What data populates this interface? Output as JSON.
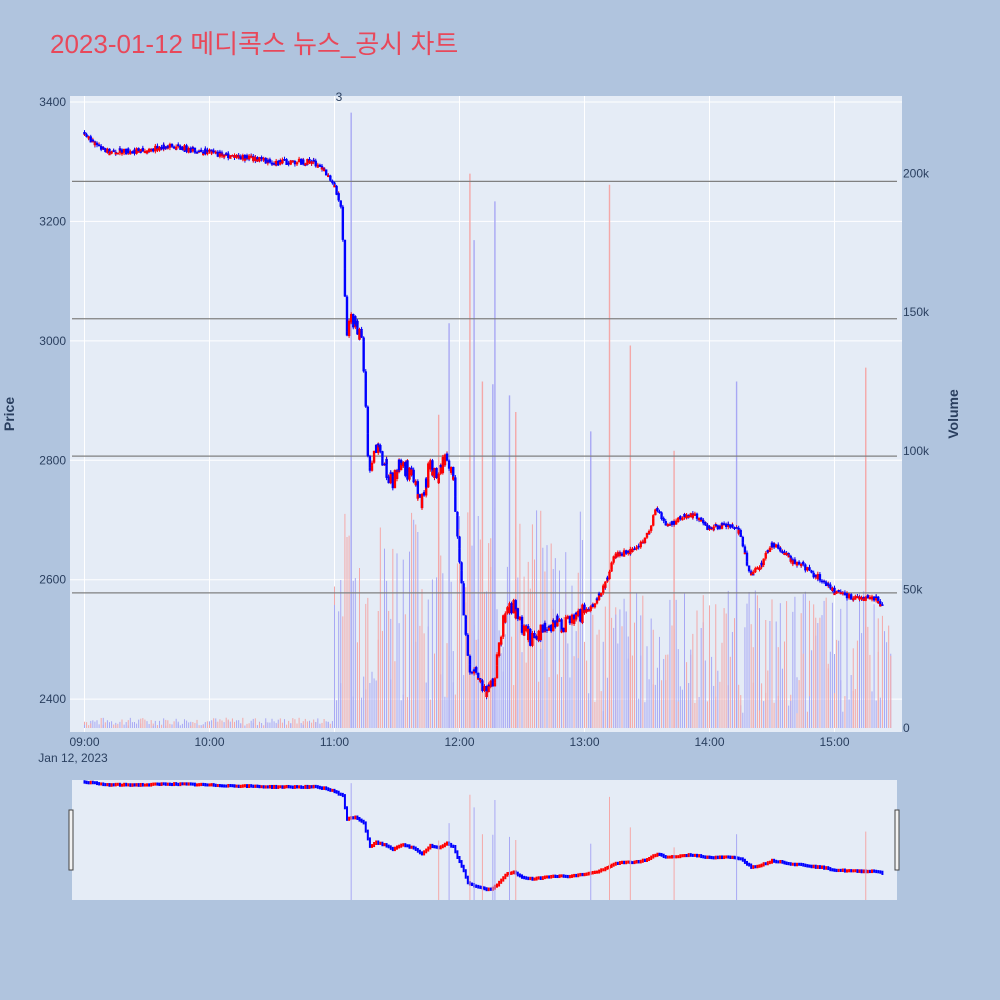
{
  "chart_data": {
    "type": "candlestick",
    "title": "2023-01-12 메디콕스 뉴스_공시 차트",
    "date_label": "Jan 12, 2023",
    "ylabel": "Price",
    "y2label": "Volume",
    "ylim": [
      2345,
      3410
    ],
    "y2lim": [
      0,
      228000
    ],
    "yticks": [
      "2400",
      "2600",
      "2800",
      "3000",
      "3200",
      "3400"
    ],
    "y2ticks": [
      "0",
      "50k",
      "100k",
      "150k",
      "200k"
    ],
    "xticks": [
      "09:00",
      "10:00",
      "11:00",
      "12:00",
      "13:00",
      "14:00",
      "15:00"
    ],
    "annotation": "3",
    "annotation_time": "11:08",
    "hlines": [
      2578,
      2807,
      3037,
      3267
    ],
    "up_color": "#ff0000",
    "down_color": "#0000ff",
    "price_path": [
      [
        "09:00",
        3345
      ],
      [
        "09:10",
        3318
      ],
      [
        "09:20",
        3318
      ],
      [
        "09:30",
        3318
      ],
      [
        "09:40",
        3326
      ],
      [
        "09:50",
        3322
      ],
      [
        "10:00",
        3316
      ],
      [
        "10:10",
        3310
      ],
      [
        "10:20",
        3306
      ],
      [
        "10:30",
        3300
      ],
      [
        "10:40",
        3300
      ],
      [
        "10:50",
        3300
      ],
      [
        "10:55",
        3290
      ],
      [
        "11:00",
        3260
      ],
      [
        "11:04",
        3225
      ],
      [
        "11:06",
        3020
      ],
      [
        "11:10",
        3040
      ],
      [
        "11:14",
        2990
      ],
      [
        "11:17",
        2780
      ],
      [
        "11:20",
        2820
      ],
      [
        "11:25",
        2790
      ],
      [
        "11:28",
        2760
      ],
      [
        "11:32",
        2800
      ],
      [
        "11:38",
        2770
      ],
      [
        "11:42",
        2720
      ],
      [
        "11:46",
        2790
      ],
      [
        "11:50",
        2770
      ],
      [
        "11:54",
        2810
      ],
      [
        "11:57",
        2780
      ],
      [
        "12:00",
        2650
      ],
      [
        "12:02",
        2570
      ],
      [
        "12:04",
        2470
      ],
      [
        "12:07",
        2445
      ],
      [
        "12:10",
        2430
      ],
      [
        "12:13",
        2410
      ],
      [
        "12:16",
        2420
      ],
      [
        "12:19",
        2470
      ],
      [
        "12:22",
        2540
      ],
      [
        "12:26",
        2560
      ],
      [
        "12:30",
        2520
      ],
      [
        "12:35",
        2500
      ],
      [
        "12:40",
        2515
      ],
      [
        "12:45",
        2530
      ],
      [
        "12:50",
        2525
      ],
      [
        "12:55",
        2530
      ],
      [
        "13:00",
        2545
      ],
      [
        "13:05",
        2560
      ],
      [
        "13:10",
        2590
      ],
      [
        "13:15",
        2640
      ],
      [
        "13:20",
        2645
      ],
      [
        "13:25",
        2650
      ],
      [
        "13:30",
        2670
      ],
      [
        "13:35",
        2720
      ],
      [
        "13:40",
        2690
      ],
      [
        "13:45",
        2700
      ],
      [
        "13:50",
        2710
      ],
      [
        "13:55",
        2705
      ],
      [
        "14:00",
        2685
      ],
      [
        "14:05",
        2690
      ],
      [
        "14:10",
        2690
      ],
      [
        "14:15",
        2680
      ],
      [
        "14:20",
        2605
      ],
      [
        "14:25",
        2625
      ],
      [
        "14:30",
        2660
      ],
      [
        "14:35",
        2650
      ],
      [
        "14:40",
        2630
      ],
      [
        "14:45",
        2625
      ],
      [
        "14:50",
        2610
      ],
      [
        "14:55",
        2600
      ],
      [
        "15:00",
        2580
      ],
      [
        "15:05",
        2575
      ],
      [
        "15:10",
        2570
      ],
      [
        "15:15",
        2570
      ],
      [
        "15:20",
        2570
      ],
      [
        "15:23",
        2555
      ]
    ],
    "volume_spikes": [
      [
        "11:08",
        222000
      ],
      [
        "12:05",
        200000
      ],
      [
        "12:17",
        190000
      ],
      [
        "13:12",
        196000
      ],
      [
        "12:07",
        176000
      ],
      [
        "13:22",
        138000
      ],
      [
        "14:13",
        125000
      ],
      [
        "15:15",
        130000
      ],
      [
        "11:55",
        146000
      ],
      [
        "12:11",
        125000
      ],
      [
        "12:16",
        124000
      ],
      [
        "11:50",
        113000
      ],
      [
        "13:03",
        107000
      ],
      [
        "12:27",
        114000
      ],
      [
        "12:24",
        120000
      ],
      [
        "13:43",
        100000
      ]
    ],
    "navigator": {
      "start": "09:00",
      "end": "15:30"
    }
  }
}
